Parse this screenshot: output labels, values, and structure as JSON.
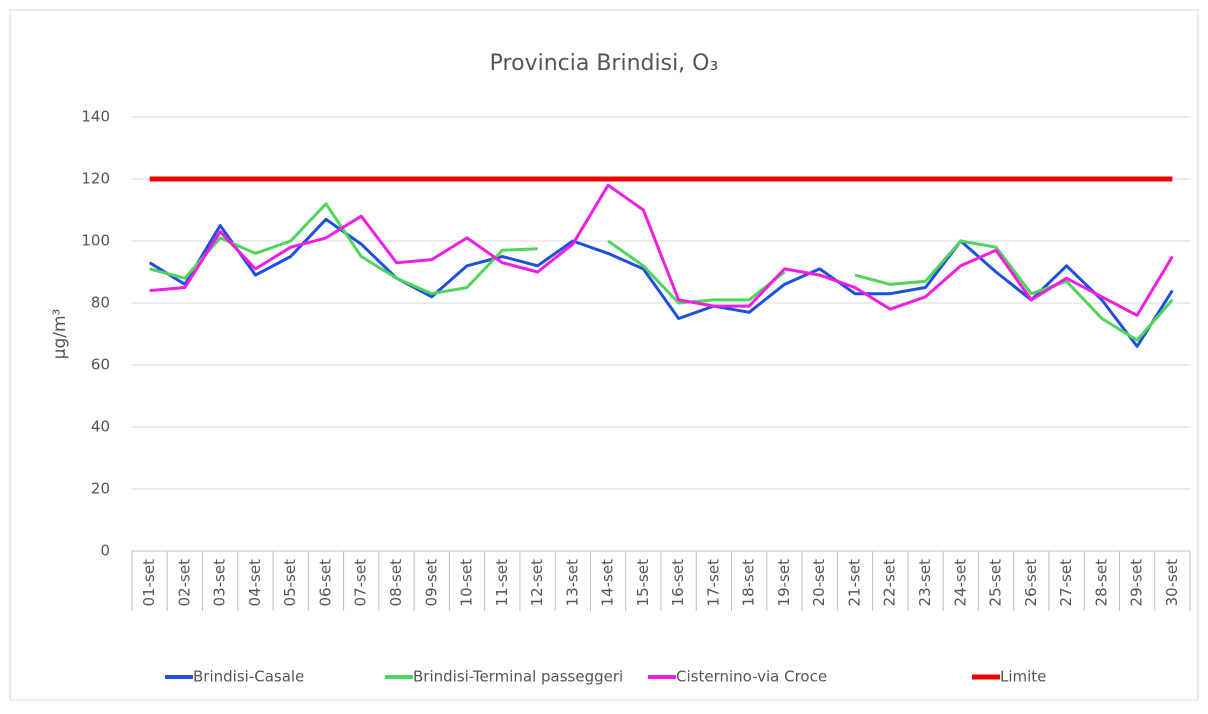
{
  "chart_data": {
    "type": "line",
    "title": "Provincia Brindisi, O₃",
    "y_label": "µg/m³",
    "categories": [
      "01-set",
      "02-set",
      "03-set",
      "04-set",
      "05-set",
      "06-set",
      "07-set",
      "08-set",
      "09-set",
      "10-set",
      "11-set",
      "12-set",
      "13-set",
      "14-set",
      "15-set",
      "16-set",
      "17-set",
      "18-set",
      "19-set",
      "20-set",
      "21-set",
      "22-set",
      "23-set",
      "24-set",
      "25-set",
      "26-set",
      "27-set",
      "28-set",
      "29-set",
      "30-set"
    ],
    "series": [
      {
        "name": "Brindisi-Casale",
        "color": "#1f4fe0",
        "values": [
          93,
          86,
          105,
          89,
          95,
          107,
          99,
          88,
          82,
          92,
          95,
          92,
          100,
          96,
          91,
          75,
          79,
          77,
          86,
          91,
          83,
          83,
          85,
          100,
          90,
          81,
          92,
          81,
          66,
          84
        ]
      },
      {
        "name": "Brindisi-Terminal passeggeri",
        "color": "#4fd65a",
        "values": [
          91,
          88,
          101,
          96,
          100,
          112,
          95,
          88,
          83,
          85,
          97,
          97.5,
          null,
          100,
          92,
          80,
          81,
          81,
          90,
          null,
          89,
          86,
          87,
          100,
          98,
          83,
          87,
          75,
          68,
          81
        ]
      },
      {
        "name": "Cisternino-via Croce",
        "color": "#f01ee0",
        "values": [
          84,
          85,
          103,
          91,
          98,
          101,
          108,
          93,
          94,
          101,
          93,
          90,
          99,
          118,
          110,
          81,
          79,
          79,
          91,
          89,
          85,
          78,
          82,
          92,
          97,
          81,
          88,
          82,
          76,
          95
        ]
      },
      {
        "name": "Limite",
        "color": "#ee0000",
        "values": [
          120,
          120,
          120,
          120,
          120,
          120,
          120,
          120,
          120,
          120,
          120,
          120,
          120,
          120,
          120,
          120,
          120,
          120,
          120,
          120,
          120,
          120,
          120,
          120,
          120,
          120,
          120,
          120,
          120,
          120
        ]
      }
    ],
    "ylim": [
      0,
      140
    ],
    "yticks": [
      0,
      20,
      40,
      60,
      80,
      100,
      120,
      140
    ],
    "grid": true,
    "legend": "bottom"
  }
}
